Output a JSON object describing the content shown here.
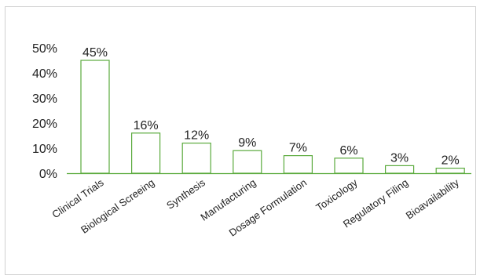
{
  "chart_data": {
    "type": "bar",
    "categories": [
      "Clinical Trials",
      "Biological Screeing",
      "Synthesis",
      "Manufacturing",
      "Dosage Formulation",
      "Toxicology",
      "Regulatory Filing",
      "Bioavailability"
    ],
    "values": [
      45,
      16,
      12,
      9,
      7,
      6,
      3,
      2
    ],
    "data_labels": [
      "45%",
      "16%",
      "12%",
      "9%",
      "7%",
      "6%",
      "3%",
      "2%"
    ],
    "y_ticks": [
      "0%",
      "10%",
      "20%",
      "30%",
      "40%",
      "50%"
    ],
    "y_tick_values": [
      0,
      10,
      20,
      30,
      40,
      50
    ],
    "ylim": [
      0,
      50
    ],
    "grid": false,
    "legend": "none",
    "bar_fill": "#ffffff",
    "bar_stroke": "#5aaa3c",
    "axis_color": "#5aaa3c"
  }
}
